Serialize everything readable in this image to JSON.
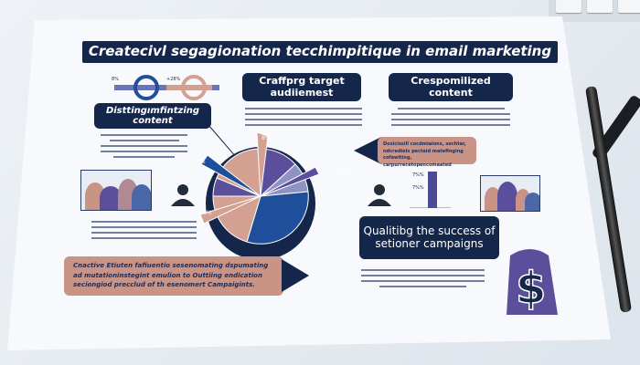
{
  "infographic": {
    "title": "Createcivl segagionation tecchimpitique  in email marketing",
    "box_target": "Craffprg target audiiemest",
    "box_personalized": "Crespomilized content",
    "box_distinguishing": "Disttingımfintzing content",
    "box_success": "Qualitibg the success of setioner campaigns",
    "callout_right": "Dosicissill cocdmiaions, sechtar, ndcrediels pectaid matefinging cofawiting, carpurrecetopencomaated",
    "callout_bottom": "Cnactive Etiuten fafiuentio sesenomating dspumating ad mutationinstegint emulion to Outtiing endication seciongiod precclud of th esenomert Campaigints.",
    "pie_labels": [
      "8%",
      "8%",
      "8%",
      "8%"
    ],
    "bar_labels": [
      "7%%",
      "7%%"
    ],
    "ring_labels": [
      "8%",
      "+28%"
    ],
    "colors": {
      "navy": "#15264b",
      "salmon": "#c99385",
      "purple": "#5b4f9c",
      "blue": "#1f4f9a",
      "lavender": "#8d93c2"
    },
    "icons": [
      "people-photo",
      "person-icon",
      "dollar-icon",
      "pen",
      "keyboard"
    ]
  }
}
